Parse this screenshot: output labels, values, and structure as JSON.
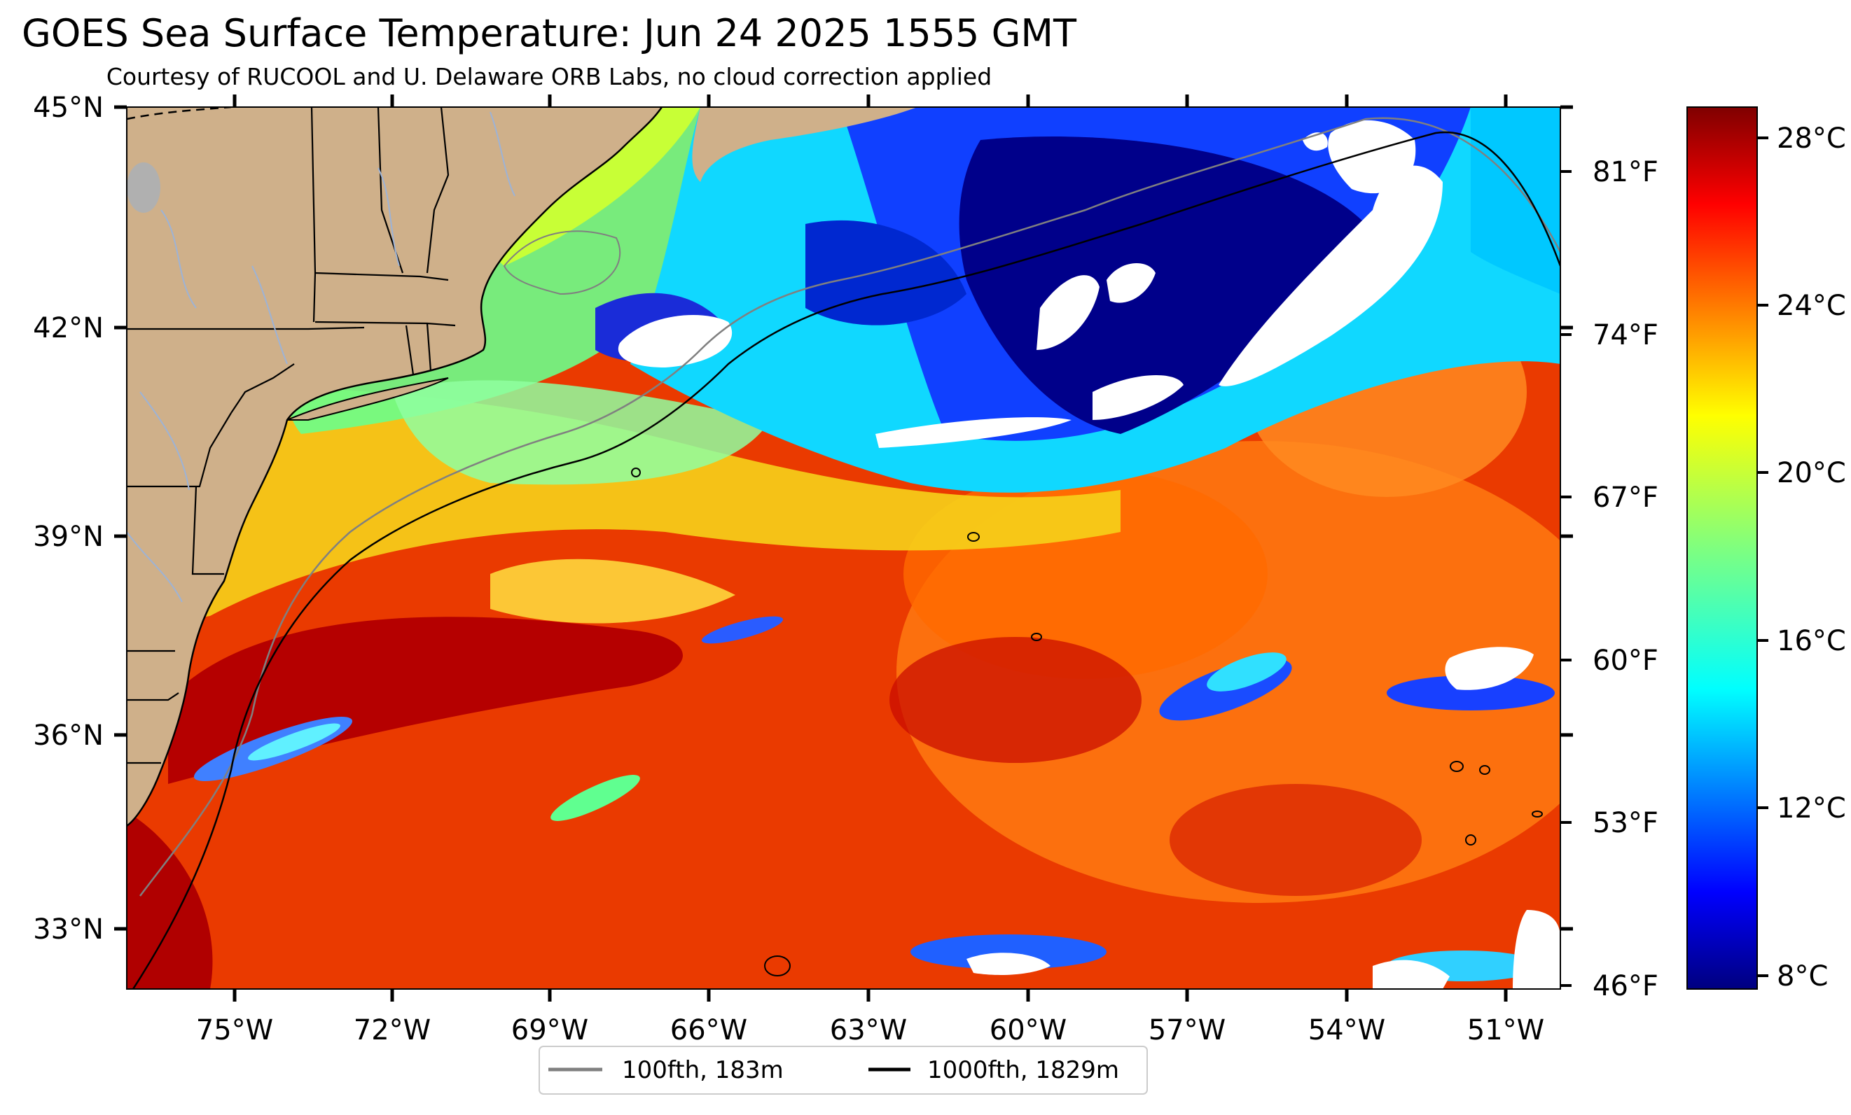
{
  "title": "GOES Sea Surface Temperature: Jun 24 2025 1555 GMT",
  "subtitle": "Courtesy of RUCOOL and U. Delaware ORB Labs, no cloud correction applied",
  "colors": {
    "land": "#cfb08a",
    "cloud": "#ffffff",
    "contour_100fth": "#808080",
    "contour_1000fth": "#000000",
    "rivers": "#9db3d6",
    "lakes": "#b0b0b0"
  },
  "axes": {
    "lat_labels": [
      "45°N",
      "42°N",
      "39°N",
      "36°N",
      "33°N"
    ],
    "lon_labels": [
      "75°W",
      "72°W",
      "69°W",
      "66°W",
      "63°W",
      "60°W",
      "57°W",
      "54°W",
      "51°W"
    ],
    "fahrenheit_labels": [
      "81°F",
      "74°F",
      "67°F",
      "60°F",
      "53°F",
      "46°F"
    ]
  },
  "colorbar": {
    "labels": [
      "28°C",
      "24°C",
      "20°C",
      "16°C",
      "12°C",
      "8°C"
    ],
    "colormap": "jet",
    "range_c": [
      7.5,
      28.8
    ]
  },
  "legend": {
    "items": [
      {
        "label": "100fth, 183m",
        "color": "#808080"
      },
      {
        "label": "1000fth, 1829m",
        "color": "#000000"
      }
    ]
  }
}
